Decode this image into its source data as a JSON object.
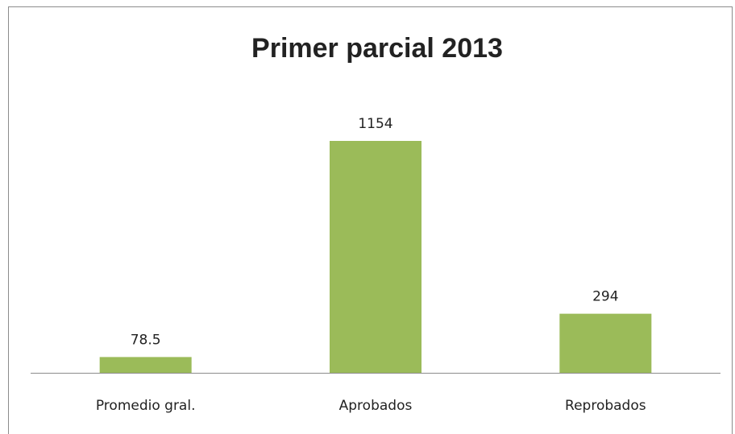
{
  "chart_data": {
    "type": "bar",
    "title": "Primer parcial 2013",
    "categories": [
      "Promedio gral.",
      "Aprobados",
      "Reprobados"
    ],
    "values": [
      78.5,
      1154,
      294
    ],
    "color": "#9bbb59"
  }
}
